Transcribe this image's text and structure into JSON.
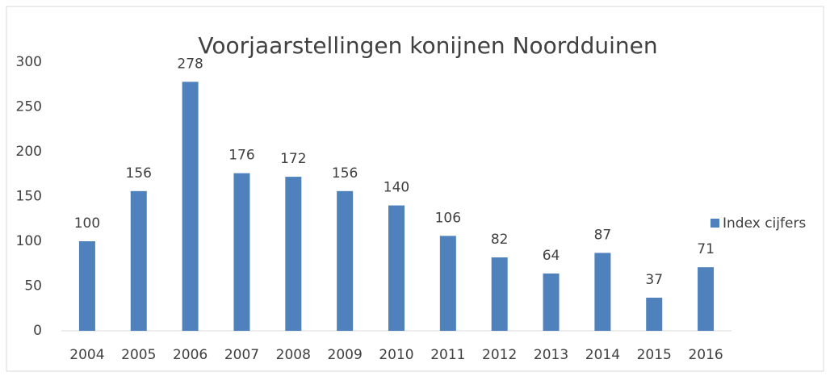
{
  "chart_data": {
    "type": "bar",
    "title": "Voorjaarstellingen konijnen Noordduinen",
    "categories": [
      "2004",
      "2005",
      "2006",
      "2007",
      "2008",
      "2009",
      "2010",
      "2011",
      "2012",
      "2013",
      "2014",
      "2015",
      "2016"
    ],
    "series": [
      {
        "name": "Index cijfers",
        "color": "#4f81bd",
        "values": [
          100,
          156,
          278,
          176,
          172,
          156,
          140,
          106,
          82,
          64,
          87,
          37,
          71
        ]
      }
    ],
    "ylim": [
      0,
      300
    ],
    "yticks": [
      0,
      50,
      100,
      150,
      200,
      250,
      300
    ],
    "grid": false,
    "legend": "right",
    "data_labels": true
  }
}
